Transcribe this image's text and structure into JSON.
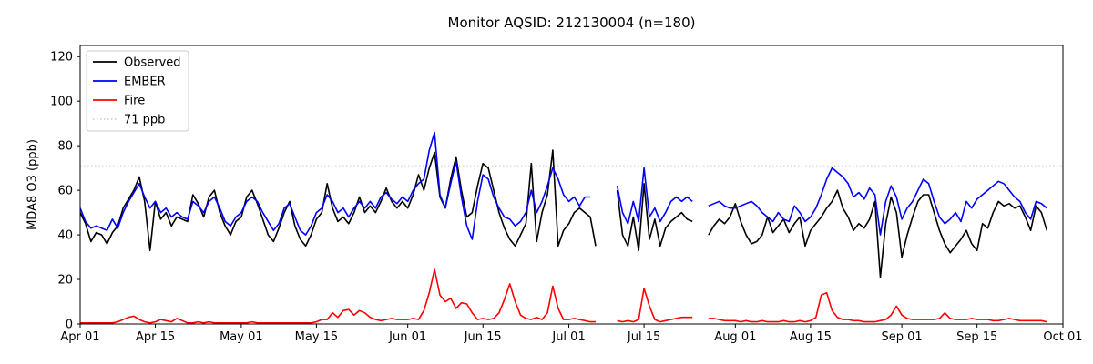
{
  "figure": {
    "title": "Monitor AQSID: 212130004 (n=180)"
  },
  "chart_data": {
    "type": "line",
    "title": "Monitor AQSID: 212130004 (n=180)",
    "xlabel": "",
    "ylabel": "MDA8 O3 (ppb)",
    "ylim": [
      0,
      125
    ],
    "y_ticks": [
      0,
      20,
      40,
      60,
      80,
      100,
      120
    ],
    "x_days_total": 183,
    "x_ticks": [
      {
        "day": 0,
        "label": "Apr 01"
      },
      {
        "day": 14,
        "label": "Apr 15"
      },
      {
        "day": 30,
        "label": "May 01"
      },
      {
        "day": 44,
        "label": "May 15"
      },
      {
        "day": 61,
        "label": "Jun 01"
      },
      {
        "day": 75,
        "label": "Jun 15"
      },
      {
        "day": 91,
        "label": "Jul 01"
      },
      {
        "day": 105,
        "label": "Jul 15"
      },
      {
        "day": 122,
        "label": "Aug 01"
      },
      {
        "day": 136,
        "label": "Aug 15"
      },
      {
        "day": 153,
        "label": "Sep 01"
      },
      {
        "day": 167,
        "label": "Sep 15"
      },
      {
        "day": 183,
        "label": "Oct 01"
      }
    ],
    "grid": false,
    "legend_position": "upper-left",
    "ref_line": {
      "value": 71,
      "label": "71 ppb",
      "color": "#d3d3d3",
      "style": "dotted"
    },
    "legend_items": [
      {
        "label": "Observed",
        "color": "#000000",
        "dash": "solid"
      },
      {
        "label": "EMBER",
        "color": "#0000ff",
        "dash": "solid"
      },
      {
        "label": "Fire",
        "color": "#ff0000",
        "dash": "solid"
      },
      {
        "label": "71 ppb",
        "color": "#d3d3d3",
        "dash": "dotted"
      }
    ],
    "series": [
      {
        "name": "Observed",
        "color": "#000000",
        "values": [
          50,
          45,
          37,
          41,
          40,
          36,
          41,
          44,
          52,
          56,
          60,
          66,
          55,
          33,
          55,
          47,
          50,
          44,
          48,
          47,
          46,
          58,
          54,
          48,
          57,
          60,
          50,
          44,
          40,
          46,
          48,
          57,
          60,
          54,
          47,
          40,
          37,
          43,
          50,
          55,
          44,
          38,
          35,
          40,
          47,
          50,
          63,
          52,
          46,
          48,
          45,
          50,
          57,
          50,
          53,
          50,
          55,
          61,
          55,
          52,
          55,
          52,
          58,
          67,
          60,
          70,
          77,
          57,
          52,
          65,
          75,
          60,
          48,
          50,
          62,
          72,
          70,
          60,
          50,
          43,
          38,
          35,
          40,
          45,
          72,
          37,
          50,
          58,
          78,
          35,
          42,
          45,
          50,
          52,
          50,
          48,
          35,
          null,
          null,
          null,
          60,
          40,
          35,
          48,
          33,
          63,
          38,
          47,
          35,
          43,
          46,
          48,
          50,
          47,
          46,
          null,
          null,
          40,
          44,
          47,
          45,
          48,
          54,
          46,
          40,
          36,
          37,
          40,
          48,
          41,
          44,
          47,
          41,
          45,
          48,
          35,
          42,
          45,
          48,
          52,
          55,
          60,
          52,
          48,
          42,
          45,
          43,
          47,
          55,
          21,
          45,
          57,
          50,
          30,
          40,
          48,
          55,
          58,
          58,
          50,
          42,
          36,
          32,
          35,
          38,
          42,
          36,
          33,
          45,
          43,
          50,
          55,
          53,
          54,
          52,
          53,
          48,
          42,
          53,
          50,
          42
        ]
      },
      {
        "name": "EMBER",
        "color": "#0000ff",
        "values": [
          52,
          46,
          43,
          44,
          43,
          42,
          47,
          43,
          50,
          55,
          59,
          63,
          57,
          52,
          55,
          50,
          52,
          48,
          50,
          48,
          47,
          55,
          53,
          50,
          55,
          57,
          52,
          46,
          44,
          48,
          50,
          55,
          57,
          55,
          50,
          46,
          42,
          45,
          52,
          54,
          48,
          42,
          40,
          44,
          50,
          52,
          58,
          55,
          50,
          52,
          48,
          52,
          55,
          52,
          55,
          52,
          57,
          59,
          56,
          54,
          57,
          55,
          60,
          63,
          65,
          78,
          86,
          58,
          52,
          63,
          73,
          57,
          44,
          38,
          55,
          67,
          65,
          57,
          52,
          48,
          47,
          44,
          46,
          50,
          60,
          50,
          55,
          62,
          70,
          65,
          58,
          55,
          57,
          53,
          57,
          57,
          null,
          null,
          null,
          null,
          62,
          50,
          45,
          55,
          46,
          70,
          48,
          52,
          46,
          50,
          55,
          57,
          55,
          57,
          55,
          null,
          null,
          53,
          54,
          55,
          53,
          52,
          52,
          53,
          54,
          55,
          53,
          50,
          48,
          46,
          50,
          47,
          46,
          53,
          50,
          46,
          48,
          52,
          58,
          65,
          70,
          68,
          66,
          63,
          57,
          59,
          56,
          61,
          58,
          40,
          55,
          62,
          57,
          47,
          52,
          55,
          60,
          65,
          63,
          55,
          48,
          45,
          47,
          50,
          46,
          55,
          52,
          56,
          58,
          60,
          62,
          64,
          63,
          60,
          57,
          55,
          50,
          47,
          55,
          54,
          52
        ]
      },
      {
        "name": "Fire",
        "color": "#ff0000",
        "values": [
          0.5,
          0.5,
          0.5,
          0.5,
          0.5,
          0.5,
          0.5,
          1,
          2,
          3,
          3.5,
          2,
          1,
          0.5,
          1,
          2,
          1.5,
          1,
          2.5,
          1.5,
          0.5,
          0.5,
          1,
          0.5,
          1,
          0.5,
          0.5,
          0.5,
          0.5,
          0.5,
          0.5,
          0.5,
          1,
          0.5,
          0.5,
          0.5,
          0.5,
          0.5,
          0.5,
          0.5,
          0.5,
          0.5,
          0.5,
          0.5,
          1,
          2,
          2,
          5,
          3,
          6,
          6.5,
          4,
          6,
          5,
          3,
          2,
          1.5,
          2,
          2.5,
          2,
          2,
          2,
          2.5,
          2,
          6,
          14,
          24.5,
          13,
          10,
          11.5,
          7,
          9.5,
          9,
          5,
          2,
          2.5,
          2,
          2.5,
          5,
          11,
          18,
          10,
          4,
          2.5,
          2,
          3,
          2,
          5,
          17,
          7,
          2,
          2,
          2.5,
          2,
          1.5,
          1,
          1,
          null,
          null,
          null,
          1.5,
          1,
          1.5,
          1,
          2,
          16,
          8,
          2,
          1,
          1.5,
          2,
          2.5,
          3,
          3,
          3,
          null,
          null,
          2.5,
          2.5,
          2,
          1.5,
          1.5,
          1.5,
          1,
          1.5,
          1,
          1,
          1.5,
          1,
          1,
          1,
          1.5,
          1,
          1,
          1.5,
          1,
          1.5,
          3,
          13,
          14,
          6,
          3,
          2,
          2,
          1.5,
          1.5,
          1,
          1,
          1,
          1.5,
          2,
          4,
          8,
          4,
          2.5,
          2,
          2,
          2,
          2,
          2,
          2.5,
          5,
          2.5,
          2,
          2,
          2,
          2.5,
          2,
          2,
          2,
          1.5,
          1.5,
          2,
          2.5,
          2,
          1.5,
          1.5,
          1.5,
          1.5,
          1.5,
          1
        ]
      }
    ]
  }
}
